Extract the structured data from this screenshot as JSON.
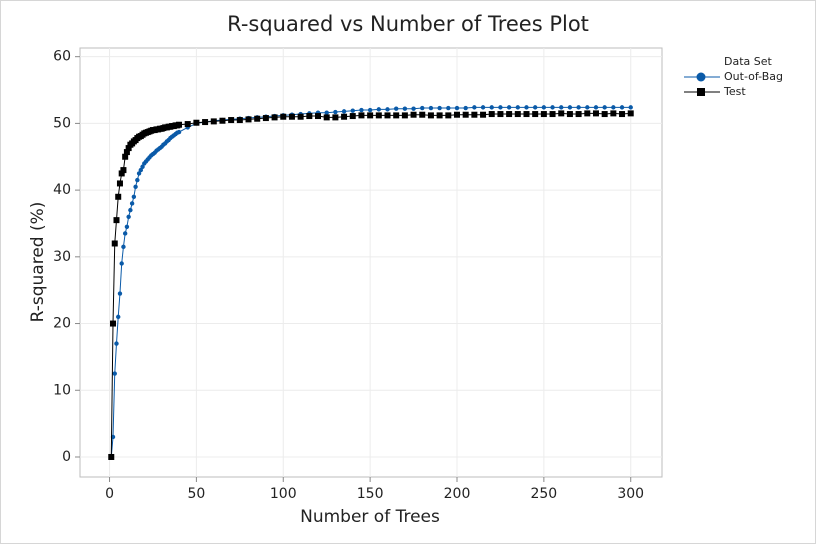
{
  "chart_data": {
    "type": "line",
    "title": "R-squared vs Number of Trees Plot",
    "x_label": "Number of Trees",
    "y_label": "R-squared (%)",
    "legend_title": "Data Set",
    "legend_position": "right",
    "grid": true,
    "xlim": [
      -17,
      318
    ],
    "ylim": [
      -3,
      61.3
    ],
    "xticks": [
      0,
      50,
      100,
      150,
      200,
      250,
      300
    ],
    "yticks": [
      0,
      10,
      20,
      30,
      40,
      50,
      60
    ],
    "x": [
      1,
      2,
      3,
      4,
      5,
      6,
      7,
      8,
      9,
      10,
      11,
      12,
      13,
      14,
      15,
      16,
      17,
      18,
      19,
      20,
      21,
      22,
      23,
      24,
      25,
      26,
      27,
      28,
      29,
      30,
      31,
      32,
      33,
      34,
      35,
      36,
      37,
      38,
      39,
      40,
      45,
      50,
      55,
      60,
      65,
      70,
      75,
      80,
      85,
      90,
      95,
      100,
      105,
      110,
      115,
      120,
      125,
      130,
      135,
      140,
      145,
      150,
      155,
      160,
      165,
      170,
      175,
      180,
      185,
      190,
      195,
      200,
      205,
      210,
      215,
      220,
      225,
      230,
      235,
      240,
      245,
      250,
      255,
      260,
      265,
      270,
      275,
      280,
      285,
      290,
      295,
      300
    ],
    "series": [
      {
        "name": "Out-of-Bag",
        "color": "#0a5aa8",
        "marker": "circle",
        "values": [
          0,
          3,
          12.5,
          17,
          21,
          24.5,
          29,
          31.5,
          33.5,
          34.5,
          36,
          37,
          38,
          39,
          40.5,
          41.5,
          42.5,
          43,
          43.5,
          44,
          44.3,
          44.6,
          44.9,
          45.2,
          45.4,
          45.6,
          45.9,
          46.1,
          46.3,
          46.5,
          46.8,
          47,
          47.3,
          47.5,
          47.8,
          48,
          48.2,
          48.4,
          48.6,
          48.7,
          49.4,
          50,
          50.2,
          50.4,
          50.5,
          50.6,
          50.7,
          50.8,
          50.9,
          51,
          51.1,
          51.2,
          51.3,
          51.4,
          51.5,
          51.6,
          51.6,
          51.7,
          51.8,
          51.9,
          52,
          52,
          52.1,
          52.1,
          52.2,
          52.2,
          52.2,
          52.3,
          52.3,
          52.3,
          52.3,
          52.3,
          52.3,
          52.4,
          52.4,
          52.4,
          52.4,
          52.4,
          52.4,
          52.4,
          52.4,
          52.4,
          52.4,
          52.4,
          52.4,
          52.4,
          52.4,
          52.4,
          52.4,
          52.4,
          52.4,
          52.4
        ]
      },
      {
        "name": "Test",
        "color": "#000000",
        "marker": "square",
        "values": [
          0,
          20,
          32,
          35.5,
          39,
          41,
          42.5,
          43,
          45,
          45.7,
          46.3,
          46.8,
          47,
          47.3,
          47.5,
          47.8,
          48,
          48.1,
          48.3,
          48.5,
          48.6,
          48.7,
          48.8,
          48.9,
          49,
          49,
          49.1,
          49.1,
          49.2,
          49.2,
          49.3,
          49.4,
          49.4,
          49.5,
          49.5,
          49.6,
          49.6,
          49.7,
          49.7,
          49.8,
          49.9,
          50.1,
          50.2,
          50.3,
          50.4,
          50.5,
          50.5,
          50.6,
          50.7,
          50.8,
          50.9,
          51,
          51,
          51,
          51.1,
          51.1,
          50.9,
          50.9,
          51,
          51.1,
          51.2,
          51.2,
          51.2,
          51.2,
          51.2,
          51.2,
          51.3,
          51.3,
          51.2,
          51.2,
          51.2,
          51.3,
          51.3,
          51.3,
          51.3,
          51.4,
          51.4,
          51.4,
          51.4,
          51.4,
          51.4,
          51.4,
          51.4,
          51.5,
          51.4,
          51.4,
          51.5,
          51.5,
          51.4,
          51.5,
          51.4,
          51.5
        ]
      }
    ]
  }
}
